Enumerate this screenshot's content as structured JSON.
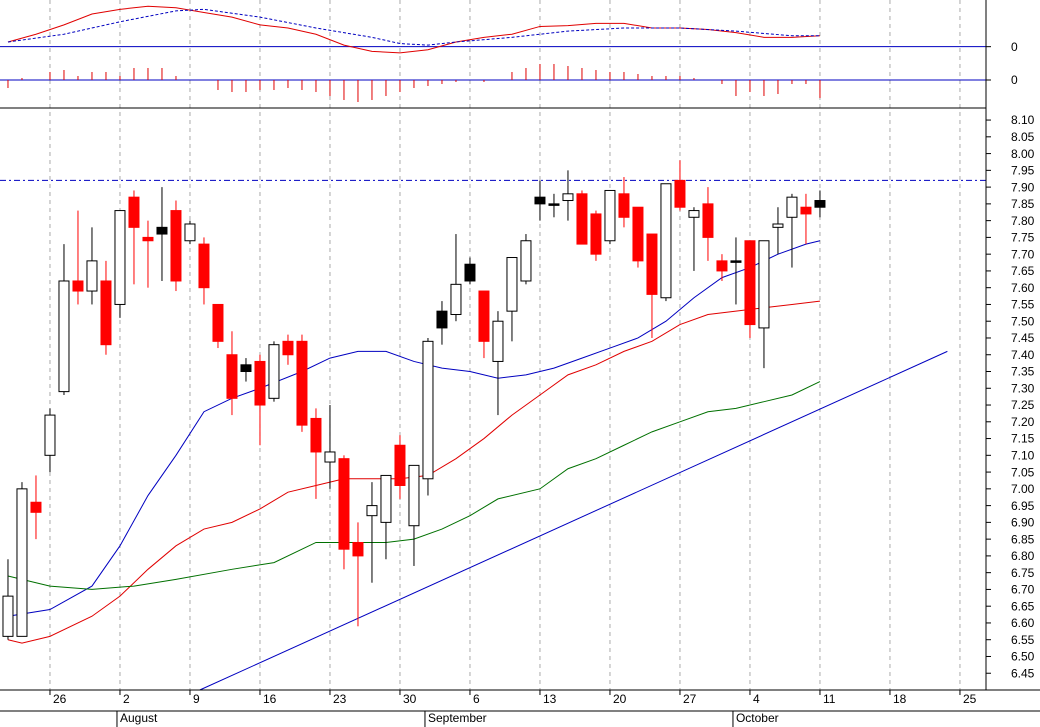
{
  "chart_data": [
    {
      "type": "line",
      "xlim": [
        -0.57,
        69.86
      ],
      "ylim": [
        -0.06,
        0.3
      ],
      "yticks": [
        0
      ],
      "series": [
        {
          "color": "#e00000",
          "style": "solid",
          "x": [
            0,
            2,
            4,
            6,
            8,
            10,
            12,
            14,
            16,
            18,
            20,
            22,
            24,
            26,
            28,
            30,
            32,
            34,
            36,
            38,
            40,
            42,
            44,
            46,
            48,
            50,
            52,
            54,
            56,
            58
          ],
          "values": [
            0.03,
            0.08,
            0.14,
            0.21,
            0.24,
            0.26,
            0.25,
            0.22,
            0.19,
            0.14,
            0.12,
            0.08,
            0.01,
            -0.03,
            -0.04,
            -0.02,
            0.03,
            0.06,
            0.08,
            0.13,
            0.135,
            0.15,
            0.15,
            0.12,
            0.12,
            0.11,
            0.09,
            0.06,
            0.06,
            0.07
          ]
        },
        {
          "color": "#0000c0",
          "style": "dashed",
          "x": [
            0,
            4,
            8,
            12,
            14,
            18,
            22,
            26,
            28,
            30,
            32,
            36,
            40,
            44,
            48,
            52,
            56,
            58
          ],
          "values": [
            0.03,
            0.08,
            0.16,
            0.23,
            0.24,
            0.19,
            0.12,
            0.06,
            0.02,
            0.01,
            0.03,
            0.06,
            0.1,
            0.12,
            0.12,
            0.1,
            0.07,
            0.07
          ]
        }
      ]
    },
    {
      "type": "bar",
      "xlim": [
        -0.57,
        69.86
      ],
      "ylim": [
        -0.07,
        0.06
      ],
      "yticks": [
        0
      ],
      "color": "#e00000",
      "x": [
        0,
        1,
        2,
        3,
        4,
        5,
        6,
        7,
        8,
        9,
        10,
        11,
        12,
        13,
        14,
        15,
        16,
        17,
        18,
        19,
        20,
        21,
        22,
        23,
        24,
        25,
        26,
        27,
        28,
        29,
        30,
        31,
        32,
        33,
        34,
        35,
        36,
        37,
        38,
        39,
        40,
        41,
        42,
        43,
        44,
        45,
        46,
        47,
        48,
        49,
        50,
        51,
        52,
        53,
        54,
        55,
        56,
        57,
        58
      ],
      "values": [
        -0.02,
        0.005,
        0,
        0.02,
        0.025,
        0.01,
        0.02,
        0.02,
        0.01,
        0.03,
        0.03,
        0.03,
        0.01,
        0,
        0,
        -0.025,
        -0.03,
        -0.03,
        -0.025,
        -0.025,
        -0.02,
        -0.025,
        -0.03,
        -0.04,
        -0.05,
        -0.055,
        -0.05,
        -0.04,
        -0.03,
        -0.02,
        -0.015,
        -0.01,
        -0.005,
        0,
        -0.005,
        0,
        0.02,
        0.03,
        0.04,
        0.04,
        0.035,
        0.03,
        0.025,
        0.02,
        0.02,
        0.015,
        0.01,
        0.01,
        0.01,
        0.005,
        0,
        -0.01,
        -0.04,
        -0.03,
        -0.04,
        -0.035,
        -0.01,
        -0.01,
        -0.045
      ]
    },
    {
      "type": "candlestick",
      "xlim": [
        -0.57,
        69.86
      ],
      "ylim": [
        6.4,
        8.13
      ],
      "yticks": [
        6.45,
        {
          "value": 6.5,
          "label": "6.50"
        },
        6.55,
        {
          "value": 6.6,
          "label": "6.60"
        },
        6.65,
        {
          "value": 6.7,
          "label": "6.70"
        },
        6.75,
        {
          "value": 6.8,
          "label": "6.80"
        },
        6.85,
        {
          "value": 6.9,
          "label": "6.90"
        },
        6.95,
        {
          "value": 7,
          "label": "7.00"
        },
        7.05,
        {
          "value": 7.1,
          "label": "7.10"
        },
        7.15,
        {
          "value": 7.2,
          "label": "7.20"
        },
        7.25,
        {
          "value": 7.3,
          "label": "7.30"
        },
        7.35,
        {
          "value": 7.4,
          "label": "7.40"
        },
        7.45,
        {
          "value": 7.5,
          "label": "7.50"
        },
        7.55,
        {
          "value": 7.6,
          "label": "7.60"
        },
        7.65,
        {
          "value": 7.7,
          "label": "7.70"
        },
        7.75,
        {
          "value": 7.8,
          "label": "7.80"
        },
        7.85,
        {
          "value": 7.9,
          "label": "7.90"
        },
        7.95,
        {
          "value": 8,
          "label": "8.00"
        },
        8.05,
        {
          "value": 8.1,
          "label": "8.10"
        }
      ],
      "xticks": [
        {
          "value": 3,
          "label": "26"
        },
        {
          "value": 8,
          "label": "2"
        },
        {
          "value": 13,
          "label": "9"
        },
        {
          "value": 18,
          "label": "16"
        },
        {
          "value": 23,
          "label": "23"
        },
        {
          "value": 28,
          "label": "30"
        },
        {
          "value": 33,
          "label": "6"
        },
        {
          "value": 38,
          "label": "13"
        },
        {
          "value": 43,
          "label": "20"
        },
        {
          "value": 48,
          "label": "27"
        },
        {
          "value": 53,
          "label": "4"
        },
        {
          "value": 58,
          "label": "11"
        },
        {
          "value": 63,
          "label": "18"
        },
        {
          "value": 68,
          "label": "25"
        }
      ],
      "month_ticks": [
        {
          "value": 8,
          "label": "August"
        },
        {
          "value": 30,
          "label": "September"
        },
        {
          "value": 52,
          "label": "October"
        }
      ],
      "grid": true,
      "x": [
        0,
        1,
        2,
        3,
        4,
        5,
        6,
        7,
        8,
        9,
        10,
        11,
        12,
        13,
        14,
        15,
        16,
        17,
        18,
        19,
        20,
        21,
        22,
        23,
        24,
        25,
        26,
        27,
        28,
        29,
        30,
        31,
        32,
        33,
        34,
        35,
        36,
        37,
        38,
        39,
        40,
        41,
        42,
        43,
        44,
        45,
        46,
        47,
        48,
        49,
        50,
        51,
        52,
        53,
        54,
        55,
        56,
        57,
        58
      ],
      "open": [
        6.56,
        6.56,
        6.96,
        7.1,
        7.29,
        7.62,
        7.59,
        7.62,
        7.55,
        7.87,
        7.75,
        7.76,
        7.83,
        7.74,
        7.73,
        7.55,
        7.4,
        7.35,
        7.38,
        7.27,
        7.44,
        7.44,
        7.21,
        7.08,
        7.09,
        6.84,
        6.92,
        6.9,
        7.13,
        6.89,
        7.03,
        7.48,
        7.52,
        7.62,
        7.59,
        7.38,
        7.53,
        7.62,
        7.85,
        7.85,
        7.86,
        7.88,
        7.82,
        7.74,
        7.88,
        7.84,
        7.76,
        7.57,
        7.92,
        7.81,
        7.85,
        7.68,
        7.68,
        7.74,
        7.48,
        7.78,
        7.81,
        7.84,
        7.84
      ],
      "high": [
        6.79,
        7.02,
        7.04,
        7.24,
        7.73,
        7.83,
        7.78,
        7.68,
        7.83,
        7.89,
        7.8,
        7.9,
        7.86,
        7.8,
        7.75,
        7.55,
        7.47,
        7.39,
        7.4,
        7.44,
        7.46,
        7.46,
        7.24,
        7.25,
        7.1,
        6.9,
        7.02,
        7.04,
        7.16,
        7.07,
        7.45,
        7.56,
        7.76,
        7.69,
        7.59,
        7.53,
        7.69,
        7.76,
        7.92,
        7.88,
        7.95,
        7.89,
        7.83,
        7.89,
        7.93,
        7.84,
        7.76,
        7.91,
        7.98,
        7.84,
        7.9,
        7.7,
        7.75,
        7.74,
        7.74,
        7.84,
        7.88,
        7.88,
        7.89
      ],
      "low": [
        6.55,
        6.56,
        6.85,
        7.05,
        7.28,
        7.55,
        7.55,
        7.4,
        7.51,
        7.61,
        7.6,
        7.62,
        7.59,
        7.73,
        7.55,
        7.42,
        7.22,
        7.32,
        7.13,
        7.26,
        7.37,
        7.17,
        6.97,
        7.0,
        6.76,
        6.59,
        6.72,
        6.79,
        6.97,
        6.77,
        6.98,
        7.43,
        7.5,
        7.61,
        7.39,
        7.22,
        7.44,
        7.61,
        7.8,
        7.81,
        7.8,
        7.73,
        7.68,
        7.73,
        7.78,
        7.66,
        7.45,
        7.56,
        7.83,
        7.65,
        7.68,
        7.62,
        7.55,
        7.45,
        7.36,
        7.7,
        7.66,
        7.73,
        7.81
      ],
      "close": [
        6.68,
        7.0,
        6.93,
        7.22,
        7.62,
        7.59,
        7.68,
        7.43,
        7.83,
        7.78,
        7.74,
        7.78,
        7.62,
        7.79,
        7.6,
        7.44,
        7.27,
        7.37,
        7.25,
        7.43,
        7.4,
        7.19,
        7.11,
        7.11,
        6.82,
        6.8,
        6.95,
        7.04,
        7.01,
        7.07,
        7.44,
        7.53,
        7.61,
        7.67,
        7.44,
        7.5,
        7.69,
        7.74,
        7.87,
        7.85,
        7.88,
        7.73,
        7.7,
        7.89,
        7.81,
        7.68,
        7.58,
        7.91,
        7.84,
        7.83,
        7.75,
        7.65,
        7.68,
        7.49,
        7.74,
        7.79,
        7.87,
        7.82,
        7.86
      ],
      "colors": [
        "#ffffff",
        "#ffffff",
        "#ff0000",
        "#ffffff",
        "#ffffff",
        "#ff0000",
        "#ffffff",
        "#ff0000",
        "#ffffff",
        "#ff0000",
        "#ff0000",
        "#000000",
        "#ff0000",
        "#ffffff",
        "#ff0000",
        "#ff0000",
        "#ff0000",
        "#000000",
        "#ff0000",
        "#ffffff",
        "#ff0000",
        "#ff0000",
        "#ff0000",
        "#ffffff",
        "#ff0000",
        "#ff0000",
        "#ffffff",
        "#ffffff",
        "#ff0000",
        "#ffffff",
        "#ffffff",
        "#000000",
        "#ffffff",
        "#000000",
        "#ff0000",
        "#ffffff",
        "#ffffff",
        "#ffffff",
        "#000000",
        "#000000",
        "#ffffff",
        "#ff0000",
        "#ff0000",
        "#ffffff",
        "#ff0000",
        "#ff0000",
        "#ff0000",
        "#ffffff",
        "#ff0000",
        "#ffffff",
        "#ff0000",
        "#ff0000",
        "#000000",
        "#ff0000",
        "#ffffff",
        "#ffffff",
        "#ffffff",
        "#ff0000",
        "#000000"
      ],
      "lines": [
        {
          "color": "#0000c0",
          "x": [
            0,
            3,
            6,
            8,
            10,
            12,
            14,
            16,
            18,
            21,
            23,
            25,
            27,
            29,
            31,
            33,
            35,
            37,
            39,
            41,
            43,
            45,
            47,
            49,
            51,
            53,
            55,
            57,
            58
          ],
          "values": [
            6.62,
            6.64,
            6.71,
            6.83,
            6.98,
            7.1,
            7.23,
            7.27,
            7.3,
            7.35,
            7.39,
            7.41,
            7.41,
            7.38,
            7.36,
            7.35,
            7.33,
            7.34,
            7.36,
            7.39,
            7.42,
            7.45,
            7.5,
            7.57,
            7.63,
            7.66,
            7.7,
            7.73,
            7.74
          ]
        },
        {
          "color": "#e00000",
          "x": [
            0,
            1,
            3,
            6,
            8,
            10,
            12,
            14,
            16,
            18,
            20,
            22,
            24,
            26,
            28,
            30,
            32,
            34,
            36,
            38,
            40,
            42,
            44,
            46,
            48,
            50,
            52,
            54,
            56,
            58
          ],
          "values": [
            6.55,
            6.54,
            6.56,
            6.62,
            6.68,
            6.76,
            6.83,
            6.88,
            6.9,
            6.94,
            6.99,
            7.01,
            7.03,
            7.03,
            7.03,
            7.04,
            7.09,
            7.15,
            7.22,
            7.28,
            7.34,
            7.37,
            7.41,
            7.44,
            7.49,
            7.52,
            7.53,
            7.54,
            7.55,
            7.56
          ]
        },
        {
          "color": "#007000",
          "x": [
            0,
            3,
            6,
            9,
            12,
            16,
            19,
            22,
            24,
            27,
            29,
            31,
            33,
            35,
            38,
            40,
            42,
            44,
            46,
            48,
            50,
            52,
            54,
            56,
            58
          ],
          "values": [
            6.74,
            6.71,
            6.7,
            6.71,
            6.73,
            6.76,
            6.78,
            6.84,
            6.84,
            6.84,
            6.85,
            6.88,
            6.92,
            6.97,
            7.0,
            7.06,
            7.09,
            7.13,
            7.17,
            7.2,
            7.23,
            7.24,
            7.26,
            7.28,
            7.32
          ]
        }
      ],
      "trendline": {
        "color": "#0000c0",
        "x": [
          13.7,
          67.1
        ],
        "values": [
          6.4,
          7.41
        ]
      },
      "hline": {
        "color": "#0000c0",
        "value": 7.92
      }
    }
  ]
}
